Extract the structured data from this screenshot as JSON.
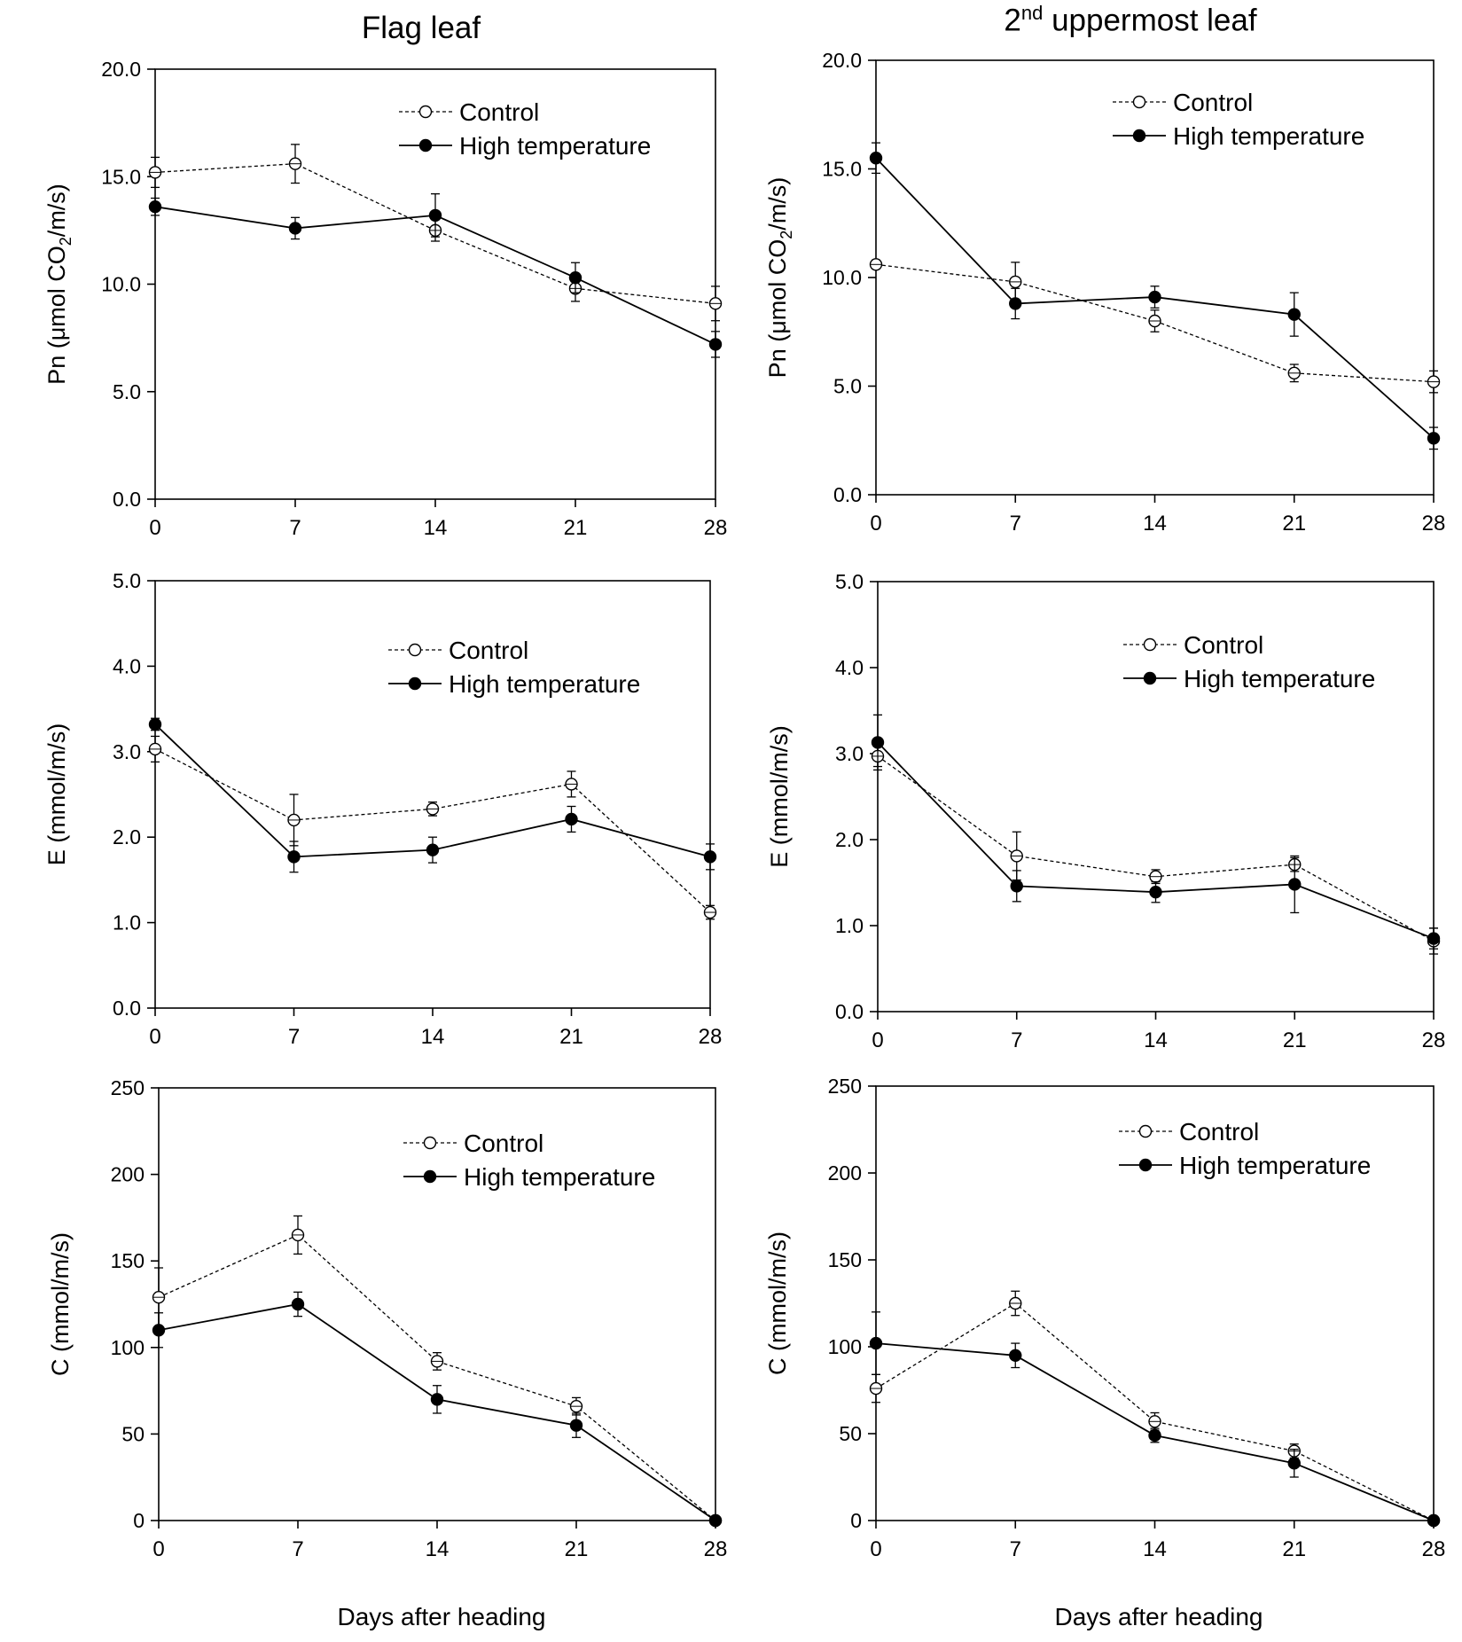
{
  "columns": {
    "left": {
      "title": "Flag leaf"
    },
    "right": {
      "title_prefix": "2",
      "title_sup": "nd",
      "title_rest": " uppermost leaf"
    }
  },
  "legend": {
    "control": "Control",
    "high": "High temperature"
  },
  "x_title": "Days after heading",
  "chart_data": [
    {
      "id": "pn-flag",
      "type": "line",
      "column": "Flag leaf",
      "ylabel_pre": "Pn (",
      "ylabel_mu": "μ",
      "ylabel_mid": "mol CO",
      "ylabel_sub": "2",
      "ylabel_post": "/m/s)",
      "ylim": [
        0,
        20
      ],
      "yticks": [
        "0.0",
        "5.0",
        "10.0",
        "15.0",
        "20.0"
      ],
      "x": [
        0,
        7,
        14,
        21,
        28
      ],
      "xticks": [
        "0",
        "7",
        "14",
        "21",
        "28"
      ],
      "series": [
        {
          "name": "Control",
          "values": [
            15.2,
            15.6,
            12.5,
            9.8,
            9.1
          ],
          "errors": [
            0.7,
            0.9,
            0.5,
            0.6,
            0.8
          ]
        },
        {
          "name": "High temperature",
          "values": [
            13.6,
            12.6,
            13.2,
            10.3,
            7.2
          ],
          "errors": [
            0.4,
            0.5,
            1.0,
            0.7,
            0.6
          ]
        }
      ]
    },
    {
      "id": "pn-2nd",
      "type": "line",
      "column": "2nd uppermost leaf",
      "ylabel_pre": "Pn (",
      "ylabel_mu": "μ",
      "ylabel_mid": "mol CO",
      "ylabel_sub": "2",
      "ylabel_post": "/m/s)",
      "ylim": [
        0,
        20
      ],
      "yticks": [
        "0.0",
        "5.0",
        "10.0",
        "15.0",
        "20.0"
      ],
      "x": [
        0,
        7,
        14,
        21,
        28
      ],
      "xticks": [
        "0",
        "7",
        "14",
        "21",
        "28"
      ],
      "series": [
        {
          "name": "Control",
          "values": [
            10.6,
            9.8,
            8.0,
            5.6,
            5.2
          ],
          "errors": [
            0.2,
            0.9,
            0.5,
            0.4,
            0.5
          ]
        },
        {
          "name": "High temperature",
          "values": [
            15.5,
            8.8,
            9.1,
            8.3,
            2.6
          ],
          "errors": [
            0.7,
            0.7,
            0.5,
            1.0,
            0.5
          ]
        }
      ]
    },
    {
      "id": "e-flag",
      "type": "line",
      "column": "Flag leaf",
      "ylabel_pre": "E (mmol/m/s)",
      "ylabel_mu": "",
      "ylabel_mid": "",
      "ylabel_sub": "",
      "ylabel_post": "",
      "ylim": [
        0,
        5
      ],
      "yticks": [
        "0.0",
        "1.0",
        "2.0",
        "3.0",
        "4.0",
        "5.0"
      ],
      "x": [
        0,
        7,
        14,
        21,
        28
      ],
      "xticks": [
        "0",
        "7",
        "14",
        "21",
        "28"
      ],
      "series": [
        {
          "name": "Control",
          "values": [
            3.03,
            2.2,
            2.33,
            2.62,
            1.12
          ],
          "errors": [
            0.15,
            0.3,
            0.08,
            0.15,
            0.08
          ]
        },
        {
          "name": "High temperature",
          "values": [
            3.32,
            1.77,
            1.85,
            2.21,
            1.77
          ],
          "errors": [
            0.07,
            0.18,
            0.15,
            0.15,
            0.15
          ]
        }
      ]
    },
    {
      "id": "e-2nd",
      "type": "line",
      "column": "2nd uppermost leaf",
      "ylabel_pre": "E (mmol/m/s)",
      "ylabel_mu": "",
      "ylabel_mid": "",
      "ylabel_sub": "",
      "ylabel_post": "",
      "ylim": [
        0,
        5
      ],
      "yticks": [
        "0.0",
        "1.0",
        "2.0",
        "3.0",
        "4.0",
        "5.0"
      ],
      "x": [
        0,
        7,
        14,
        21,
        28
      ],
      "xticks": [
        "0",
        "7",
        "14",
        "21",
        "28"
      ],
      "series": [
        {
          "name": "Control",
          "values": [
            2.97,
            1.81,
            1.57,
            1.71,
            0.82
          ],
          "errors": [
            0.12,
            0.28,
            0.08,
            0.08,
            0.15
          ]
        },
        {
          "name": "High temperature",
          "values": [
            3.13,
            1.46,
            1.39,
            1.48,
            0.85
          ],
          "errors": [
            0.32,
            0.18,
            0.12,
            0.33,
            0.12
          ]
        }
      ]
    },
    {
      "id": "c-flag",
      "type": "line",
      "column": "Flag leaf",
      "ylabel_pre": "C (mmol/m/s)",
      "ylabel_mu": "",
      "ylabel_mid": "",
      "ylabel_sub": "",
      "ylabel_post": "",
      "ylim": [
        0,
        250
      ],
      "yticks": [
        "0",
        "50",
        "100",
        "150",
        "200",
        "250"
      ],
      "x": [
        0,
        7,
        14,
        21,
        28
      ],
      "xticks": [
        "0",
        "7",
        "14",
        "21",
        "28"
      ],
      "series": [
        {
          "name": "Control",
          "values": [
            129,
            165,
            92,
            66,
            0
          ],
          "errors": [
            17,
            11,
            5,
            5,
            0
          ]
        },
        {
          "name": "High temperature",
          "values": [
            110,
            125,
            70,
            55,
            0
          ],
          "errors": [
            10,
            7,
            8,
            7,
            0
          ]
        }
      ]
    },
    {
      "id": "c-2nd",
      "type": "line",
      "column": "2nd uppermost leaf",
      "ylabel_pre": "C (mmol/m/s)",
      "ylabel_mu": "",
      "ylabel_mid": "",
      "ylabel_sub": "",
      "ylabel_post": "",
      "ylim": [
        0,
        250
      ],
      "yticks": [
        "0",
        "50",
        "100",
        "150",
        "200",
        "250"
      ],
      "x": [
        0,
        7,
        14,
        21,
        28
      ],
      "xticks": [
        "0",
        "7",
        "14",
        "21",
        "28"
      ],
      "series": [
        {
          "name": "Control",
          "values": [
            76,
            125,
            57,
            40,
            0
          ],
          "errors": [
            8,
            7,
            5,
            4,
            0
          ]
        },
        {
          "name": "High temperature",
          "values": [
            102,
            95,
            49,
            33,
            0
          ],
          "errors": [
            18,
            7,
            4,
            8,
            0
          ]
        }
      ]
    }
  ]
}
